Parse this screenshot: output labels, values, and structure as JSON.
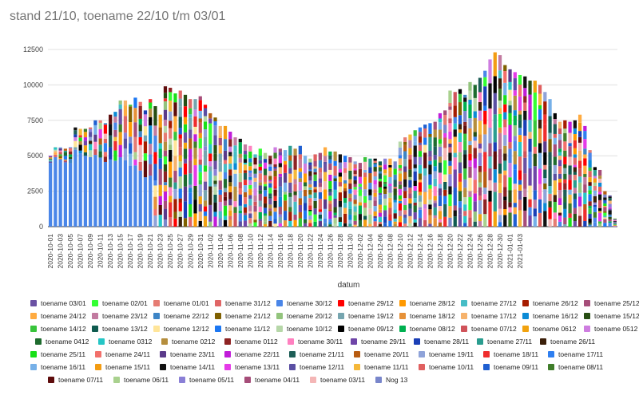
{
  "chart_data": {
    "type": "bar",
    "stacked": true,
    "title": "stand 21/10, toename 22/10 t/m 03/01",
    "xlabel": "datum",
    "ylabel": "",
    "ylim": [
      0,
      12500
    ],
    "yticks": [
      0,
      2500,
      5000,
      7500,
      10000,
      12500
    ],
    "grid": true,
    "legend_position": "bottom",
    "x_tick_labels": [
      "2020-10-01",
      "2020-10-03",
      "2020-10-05",
      "2020-10-07",
      "2020-10-09",
      "2020-10-11",
      "2020-10-13",
      "2020-10-15",
      "2020-10-17",
      "2020-10-19",
      "2020-10-21",
      "2020-10-23",
      "2020-10-25",
      "2020-10-27",
      "2020-10-29",
      "2020-10-31",
      "2020-11-02",
      "2020-11-04",
      "2020-11-06",
      "2020-11-08",
      "2020-11-10",
      "2020-11-12",
      "2020-11-14",
      "2020-11-16",
      "2020-11-18",
      "2020-11-20",
      "2020-11-22",
      "2020-11-24",
      "2020-11-26",
      "2020-11-28",
      "2020-11-30",
      "2020-12-02",
      "2020-12-04",
      "2020-12-06",
      "2020-12-08",
      "2020-12-10",
      "2020-12-12",
      "2020-12-14",
      "2020-12-16",
      "2020-12-18",
      "2020-12-20",
      "2020-12-22",
      "2020-12-24",
      "2020-12-26",
      "2020-12-28",
      "2020-12-30",
      "2021-01-01",
      "2021-01-03"
    ],
    "start_date": "2020-10-01",
    "totals": [
      5000,
      5600,
      5600,
      5500,
      5600,
      7000,
      6900,
      6900,
      7000,
      7500,
      7500,
      7300,
      7900,
      8100,
      8900,
      8900,
      8600,
      9100,
      8800,
      8200,
      9000,
      8500,
      7900,
      9900,
      9800,
      9400,
      9600,
      9300,
      9000,
      9000,
      9200,
      8600,
      8000,
      7700,
      7100,
      7100,
      6700,
      6300,
      6200,
      5800,
      5700,
      5100,
      5500,
      5200,
      5000,
      5600,
      5500,
      5400,
      5700,
      5500,
      5700,
      5000,
      4800,
      5100,
      5200,
      5600,
      5300,
      5300,
      5100,
      5000,
      4900,
      4600,
      4500,
      4900,
      4800,
      4800,
      4600,
      4800,
      4800,
      4600,
      6000,
      6300,
      6500,
      6800,
      7000,
      7200,
      7300,
      7400,
      8000,
      8200,
      9600,
      9500,
      9700,
      9300,
      10200,
      10000,
      10500,
      11000,
      11800,
      12300,
      12100,
      11400,
      11100,
      10900,
      10700,
      10600,
      10300,
      10300,
      10000,
      9500,
      9000,
      8000,
      7400,
      7500,
      7400,
      7500,
      7900,
      7100,
      5400,
      4200,
      4000,
      2500,
      2200,
      600
    ],
    "series": [
      {
        "name": "toename 03/01",
        "color": "#6a51a3"
      },
      {
        "name": "toename 02/01",
        "color": "#33ff33"
      },
      {
        "name": "toename 01/01",
        "color": "#e67c73"
      },
      {
        "name": "toename 31/12",
        "color": "#e06666"
      },
      {
        "name": "toename 30/12",
        "color": "#4a86e8"
      },
      {
        "name": "toename 29/12",
        "color": "#ff0000"
      },
      {
        "name": "toename 28/12",
        "color": "#ff9900"
      },
      {
        "name": "toename 27/12",
        "color": "#46bdc6"
      },
      {
        "name": "toename 26/12",
        "color": "#a61c00"
      },
      {
        "name": "toename 25/12",
        "color": "#a64d79"
      },
      {
        "name": "toename 24/12",
        "color": "#ffab40"
      },
      {
        "name": "toename 23/12",
        "color": "#c27ba0"
      },
      {
        "name": "toename 22/12",
        "color": "#3d85c6"
      },
      {
        "name": "toename 21/12",
        "color": "#7f6000"
      },
      {
        "name": "toename 20/12",
        "color": "#93c47d"
      },
      {
        "name": "toename 19/12",
        "color": "#76a5af"
      },
      {
        "name": "toename 18/12",
        "color": "#e69138"
      },
      {
        "name": "toename 17/12",
        "color": "#f6b26b"
      },
      {
        "name": "toename 16/12",
        "color": "#0b8bd6"
      },
      {
        "name": "toename 15/12",
        "color": "#274e13"
      },
      {
        "name": "toename 14/12",
        "color": "#38c43b"
      },
      {
        "name": "toename 13/12",
        "color": "#0f5b4f"
      },
      {
        "name": "toename 12/12",
        "color": "#ffe599"
      },
      {
        "name": "toename 11/12",
        "color": "#1c77f2"
      },
      {
        "name": "toename 10/12",
        "color": "#b6d7a8"
      },
      {
        "name": "toename 09/12",
        "color": "#000000"
      },
      {
        "name": "toename 08/12",
        "color": "#00b050"
      },
      {
        "name": "toename 07/12",
        "color": "#d0535a"
      },
      {
        "name": "toename 0612",
        "color": "#f1a20f"
      },
      {
        "name": "toename 0512",
        "color": "#ce7de0"
      },
      {
        "name": "toename 0412",
        "color": "#1e6b2e"
      },
      {
        "name": "toename 0312",
        "color": "#25c6c6"
      },
      {
        "name": "toename 0212",
        "color": "#b58e3d"
      },
      {
        "name": "toename 0112",
        "color": "#8e2323"
      },
      {
        "name": "toename 30/11",
        "color": "#ff80c0"
      },
      {
        "name": "toename 29/11",
        "color": "#6f45a8"
      },
      {
        "name": "toename 28/11",
        "color": "#1a3fb6"
      },
      {
        "name": "toename 27/11",
        "color": "#2a9d8f"
      },
      {
        "name": "toename 26/11",
        "color": "#3b1f0a"
      },
      {
        "name": "toename 25/11",
        "color": "#18e018"
      },
      {
        "name": "toename 24/11",
        "color": "#f2706b"
      },
      {
        "name": "toename 23/11",
        "color": "#5b3a8a"
      },
      {
        "name": "toename 22/11",
        "color": "#c11cd9"
      },
      {
        "name": "toename 21/11",
        "color": "#1d5e57"
      },
      {
        "name": "toename 20/11",
        "color": "#b85c11"
      },
      {
        "name": "toename 19/11",
        "color": "#8fa3d9"
      },
      {
        "name": "toename 18/11",
        "color": "#ef2d2d"
      },
      {
        "name": "toename 17/11",
        "color": "#2f7ff0"
      },
      {
        "name": "toename 16/11",
        "color": "#76b0e8"
      },
      {
        "name": "toename 15/11",
        "color": "#f39c12"
      },
      {
        "name": "toename 14/11",
        "color": "#111111"
      },
      {
        "name": "toename 13/11",
        "color": "#e53ae8"
      },
      {
        "name": "toename 12/11",
        "color": "#5a4fa3"
      },
      {
        "name": "toename 11/11",
        "color": "#f5b83a"
      },
      {
        "name": "toename 10/11",
        "color": "#e06060"
      },
      {
        "name": "toename 09/11",
        "color": "#1f5fd1"
      },
      {
        "name": "toename 08/11",
        "color": "#3f7d2a"
      },
      {
        "name": "toename 07/11",
        "color": "#5e0c0c"
      },
      {
        "name": "toename 06/11",
        "color": "#a9d18e"
      },
      {
        "name": "toename 05/11",
        "color": "#8a7fd6"
      },
      {
        "name": "toename 04/11",
        "color": "#a64d79"
      },
      {
        "name": "toename 03/11",
        "color": "#f4b6b6"
      },
      {
        "name": "Nog 13",
        "color": "#7986cb"
      }
    ]
  }
}
